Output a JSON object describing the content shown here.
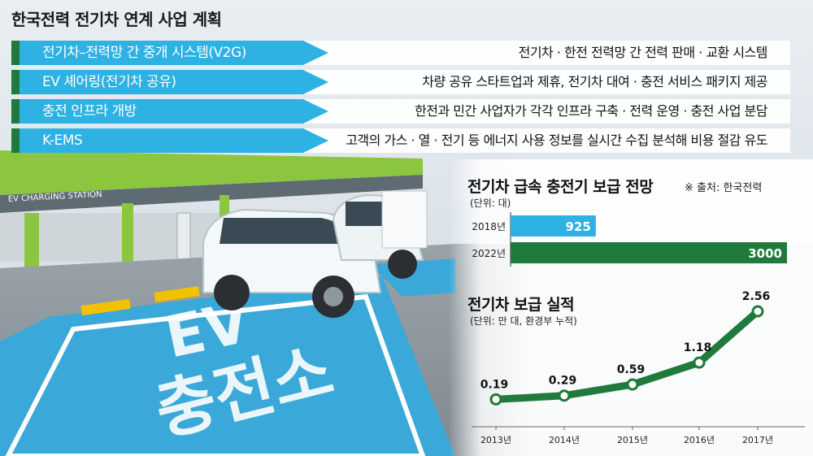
{
  "title": "한국전력 전기차 연계 사업 계획",
  "plans": [
    {
      "label": "전기차–전력망 간 중개 시스템(V2G)",
      "desc": "전기차 · 한전 전력망 간 전력 판매 · 교환 시스템"
    },
    {
      "label": "EV 셰어링(전기차 공유)",
      "desc": "차량 공유 스타트업과 제휴, 전기차 대여 · 충전 서비스 패키지 제공"
    },
    {
      "label": "충전 인프라 개방",
      "desc": "한전과 민간 사업자가 각각 인프라 구축 · 전력 운영 · 충전 사업 분담"
    },
    {
      "label": "K-EMS",
      "desc": "고객의 가스 · 열 · 전기 등 에너지 사용 정보를 실시간 수집 분석해 비용 절감 유도"
    }
  ],
  "photo": {
    "station_sign": "EV CHARGING STATION",
    "ground_text_1": "EV",
    "ground_text_2": "충전소"
  },
  "colors": {
    "accent_blue": "#2eb1e3",
    "dark_green": "#1f7a3c",
    "line_green": "#1f7a3c"
  },
  "chart_data": [
    {
      "type": "bar",
      "title": "전기차 급속 충전기 보급 전망",
      "unit_note": "(단위: 대)",
      "source": "※ 출처: 한국전력",
      "categories": [
        "2018년",
        "2022년"
      ],
      "values": [
        925,
        3000
      ],
      "colors": [
        "#2eb1e3",
        "#1f7a3c"
      ],
      "xlim": [
        0,
        3000
      ]
    },
    {
      "type": "line",
      "title": "전기차 보급 실적",
      "unit_note": "(단위: 만 대, 환경부 누적)",
      "x": [
        "2013년",
        "2014년",
        "2015년",
        "2016년",
        "2017년"
      ],
      "values": [
        0.19,
        0.29,
        0.59,
        1.18,
        2.56
      ],
      "labels": [
        "0.19",
        "0.29",
        "0.59",
        "1.18",
        "2.56"
      ],
      "ylim": [
        0,
        2.56
      ]
    }
  ]
}
